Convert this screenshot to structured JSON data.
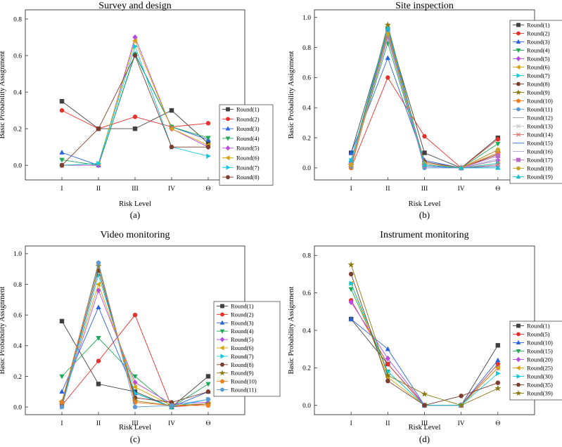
{
  "colors": [
    "#404040",
    "#e8302a",
    "#2a63e0",
    "#1eaa55",
    "#b84be0",
    "#d9a200",
    "#12c8de",
    "#7b3d2e",
    "#8a7a10",
    "#f07d1e",
    "#5b9bd5",
    "#9b9b9b",
    "#c8c8c8",
    "#e57373",
    "#3a78c9",
    "#b39ddb",
    "#ba68c8",
    "#c9a227",
    "#17becf"
  ],
  "markers": [
    "square",
    "circle",
    "triangle",
    "triangle-down",
    "diamond",
    "triangle-left",
    "triangle-right",
    "hexagon",
    "star",
    "pentagon",
    "circle",
    "line",
    "x",
    "x",
    "line",
    "line",
    "square",
    "circle",
    "triangle"
  ],
  "chart_data": [
    {
      "type": "line",
      "title": "Survey and design",
      "xlabel": "Risk Level",
      "ylabel": "Basic Probability Assignment",
      "panel_label": "(a)",
      "categories": [
        "I",
        "II",
        "III",
        "IV",
        "Θ"
      ],
      "ylim": [
        -0.08,
        0.85
      ],
      "yticks": [
        "0.0",
        "0.2",
        "0.4",
        "0.6",
        "0.8"
      ],
      "series": [
        {
          "name": "Round(1)",
          "values": [
            0.35,
            0.2,
            0.2,
            0.3,
            0.12
          ]
        },
        {
          "name": "Round(2)",
          "values": [
            0.3,
            0.2,
            0.265,
            0.21,
            0.23
          ]
        },
        {
          "name": "Round(3)",
          "values": [
            0.07,
            0.0,
            0.61,
            0.21,
            0.14
          ]
        },
        {
          "name": "Round(4)",
          "values": [
            0.03,
            0.0,
            0.605,
            0.21,
            0.15
          ]
        },
        {
          "name": "Round(5)",
          "values": [
            0.0,
            0.0,
            0.7,
            0.2,
            0.1
          ]
        },
        {
          "name": "Round(6)",
          "values": [
            0.0,
            0.01,
            0.68,
            0.2,
            0.11
          ]
        },
        {
          "name": "Round(7)",
          "values": [
            0.0,
            0.01,
            0.65,
            0.1,
            0.05
          ]
        },
        {
          "name": "Round(8)",
          "values": [
            0.0,
            0.2,
            0.6,
            0.1,
            0.1
          ]
        }
      ]
    },
    {
      "type": "line",
      "title": "Site inspection",
      "xlabel": "Risk Level",
      "ylabel": "Basic Probability Assignment",
      "panel_label": "(b)",
      "categories": [
        "I",
        "II",
        "III",
        "IV",
        "Θ"
      ],
      "ylim": [
        -0.08,
        1.05
      ],
      "yticks": [
        "0.0",
        "0.2",
        "0.4",
        "0.6",
        "0.8",
        "1.0"
      ],
      "series": [
        {
          "name": "Round(1)",
          "values": [
            0.1,
            0.92,
            0.1,
            0.0,
            0.2
          ]
        },
        {
          "name": "Round(2)",
          "values": [
            0.0,
            0.6,
            0.21,
            0.0,
            0.19
          ]
        },
        {
          "name": "Round(3)",
          "values": [
            0.1,
            0.73,
            0.05,
            0.0,
            0.12
          ]
        },
        {
          "name": "Round(4)",
          "values": [
            0.03,
            0.83,
            0.02,
            0.0,
            0.16
          ]
        },
        {
          "name": "Round(5)",
          "values": [
            0.02,
            0.9,
            0.03,
            0.0,
            0.05
          ]
        },
        {
          "name": "Round(6)",
          "values": [
            0.01,
            0.94,
            0.02,
            0.0,
            0.03
          ]
        },
        {
          "name": "Round(7)",
          "values": [
            0.05,
            0.9,
            0.02,
            0.0,
            0.03
          ]
        },
        {
          "name": "Round(8)",
          "values": [
            0.01,
            0.88,
            0.04,
            0.0,
            0.09
          ]
        },
        {
          "name": "Round(9)",
          "values": [
            0.02,
            0.95,
            0.02,
            0.0,
            0.1
          ]
        },
        {
          "name": "Round(10)",
          "values": [
            0.0,
            0.88,
            0.02,
            0.0,
            0.1
          ]
        },
        {
          "name": "Round(11)",
          "values": [
            0.01,
            0.91,
            0.0,
            0.0,
            0.02
          ]
        },
        {
          "name": "Round(12)",
          "values": [
            0.03,
            0.87,
            0.03,
            0.0,
            0.05
          ]
        },
        {
          "name": "Round(13)",
          "values": [
            0.02,
            0.89,
            0.02,
            0.0,
            0.01
          ]
        },
        {
          "name": "Round(14)",
          "values": [
            0.02,
            0.9,
            0.01,
            0.0,
            0.02
          ]
        },
        {
          "name": "Round(15)",
          "values": [
            0.01,
            0.92,
            0.01,
            0.0,
            0.01
          ]
        },
        {
          "name": "Round(16)",
          "values": [
            0.02,
            0.86,
            0.02,
            0.0,
            0.06
          ]
        },
        {
          "name": "Round(17)",
          "values": [
            0.03,
            0.88,
            0.02,
            0.0,
            0.08
          ]
        },
        {
          "name": "Round(18)",
          "values": [
            0.02,
            0.89,
            0.03,
            0.0,
            0.12
          ]
        },
        {
          "name": "Round(19)",
          "values": [
            0.05,
            0.93,
            0.02,
            0.0,
            0.0
          ]
        }
      ]
    },
    {
      "type": "line",
      "title": "Video monitoring",
      "xlabel": "Risk Level",
      "ylabel": "Basic Probability Assignment",
      "panel_label": "(c)",
      "categories": [
        "I",
        "II",
        "III",
        "IV",
        "Θ"
      ],
      "ylim": [
        -0.05,
        1.05
      ],
      "yticks": [
        "0.0",
        "0.2",
        "0.4",
        "0.6",
        "0.8",
        "1.0"
      ],
      "series": [
        {
          "name": "Round(1)",
          "values": [
            0.56,
            0.15,
            0.1,
            0.0,
            0.2
          ]
        },
        {
          "name": "Round(2)",
          "values": [
            0.01,
            0.3,
            0.6,
            0.0,
            0.02
          ]
        },
        {
          "name": "Round(3)",
          "values": [
            0.1,
            0.65,
            0.09,
            0.0,
            0.1
          ]
        },
        {
          "name": "Round(4)",
          "values": [
            0.2,
            0.45,
            0.2,
            0.0,
            0.15
          ]
        },
        {
          "name": "Round(5)",
          "values": [
            0.03,
            0.76,
            0.16,
            0.02,
            0.03
          ]
        },
        {
          "name": "Round(6)",
          "values": [
            0.04,
            0.8,
            0.13,
            0.01,
            0.02
          ]
        },
        {
          "name": "Round(7)",
          "values": [
            0.0,
            0.86,
            0.09,
            0.0,
            0.05
          ]
        },
        {
          "name": "Round(8)",
          "values": [
            0.02,
            0.89,
            0.06,
            0.03,
            0.1
          ]
        },
        {
          "name": "Round(9)",
          "values": [
            0.03,
            0.92,
            0.04,
            0.01,
            0.02
          ]
        },
        {
          "name": "Round(10)",
          "values": [
            0.03,
            0.94,
            0.03,
            0.01,
            0.01
          ]
        },
        {
          "name": "Round(11)",
          "values": [
            0.0,
            0.94,
            0.0,
            0.01,
            0.05
          ]
        }
      ]
    },
    {
      "type": "line",
      "title": "Instrument monitoring",
      "xlabel": "Risk Level",
      "ylabel": "Basic Probability Assignment",
      "panel_label": "(d)",
      "categories": [
        "I",
        "II",
        "III",
        "IV",
        "Θ"
      ],
      "ylim": [
        -0.05,
        0.85
      ],
      "yticks": [
        "0.0",
        "0.2",
        "0.4",
        "0.6",
        "0.8"
      ],
      "series": [
        {
          "name": "Round(1)",
          "values": [
            0.46,
            0.22,
            0.0,
            0.0,
            0.32
          ]
        },
        {
          "name": "Round(5)",
          "values": [
            0.56,
            0.22,
            0.0,
            0.0,
            0.22
          ]
        },
        {
          "name": "Round(10)",
          "values": [
            0.46,
            0.3,
            0.0,
            0.0,
            0.24
          ]
        },
        {
          "name": "Round(15)",
          "values": [
            0.62,
            0.18,
            0.0,
            0.0,
            0.2
          ]
        },
        {
          "name": "Round(20)",
          "values": [
            0.55,
            0.25,
            0.0,
            0.0,
            0.2
          ]
        },
        {
          "name": "Round(25)",
          "values": [
            0.65,
            0.15,
            0.0,
            0.0,
            0.2
          ]
        },
        {
          "name": "Round(30)",
          "values": [
            0.65,
            0.18,
            0.0,
            0.0,
            0.17
          ]
        },
        {
          "name": "Round(35)",
          "values": [
            0.7,
            0.13,
            0.0,
            0.05,
            0.12
          ]
        },
        {
          "name": "Round(39)",
          "values": [
            0.75,
            0.16,
            0.06,
            0.0,
            0.09
          ]
        }
      ]
    }
  ]
}
